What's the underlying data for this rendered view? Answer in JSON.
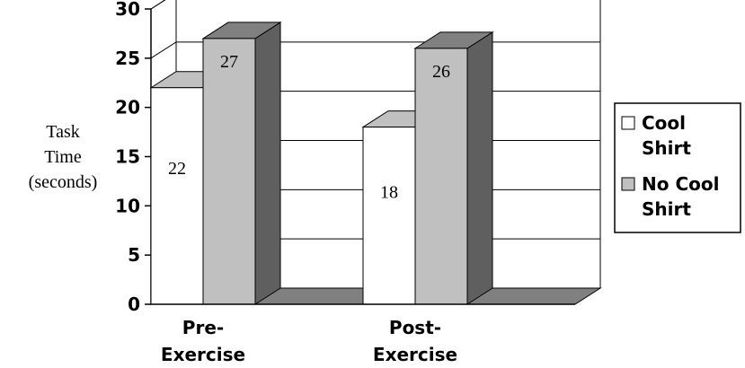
{
  "chart_data": {
    "type": "bar",
    "title": "",
    "ylabel": [
      "Task",
      "Time",
      "(seconds)"
    ],
    "categories": [
      [
        "Pre-",
        "Exercise"
      ],
      [
        "Post-",
        "Exercise"
      ]
    ],
    "series": [
      {
        "name": [
          "Cool",
          "Shirt"
        ],
        "values": [
          22,
          18
        ],
        "color": "#ffffff",
        "top_color": "#c0c0c0",
        "side_color": "#a0a0a0"
      },
      {
        "name": [
          "No Cool",
          "Shirt"
        ],
        "values": [
          27,
          26
        ],
        "color": "#c0c0c0",
        "top_color": "#808080",
        "side_color": "#5f5f5f"
      }
    ],
    "ylim": [
      0,
      30
    ],
    "yticks": [
      0,
      5,
      10,
      15,
      20,
      25,
      30
    ],
    "grid": true,
    "legend_position": "right",
    "three_d": true
  }
}
